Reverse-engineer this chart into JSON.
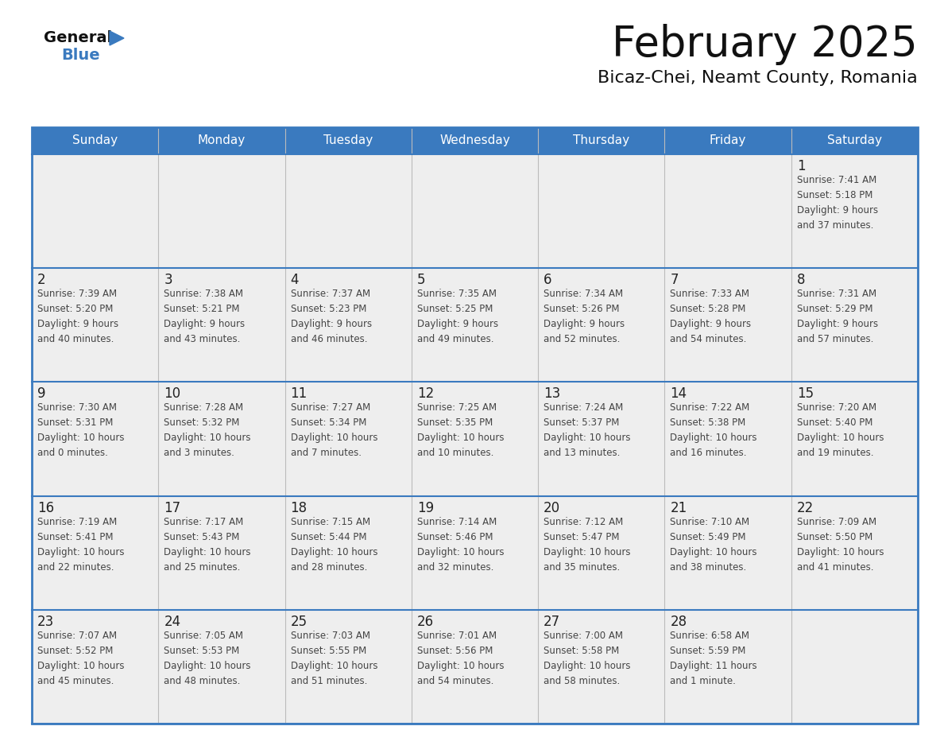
{
  "title": "February 2025",
  "subtitle": "Bicaz-Chei, Neamt County, Romania",
  "header_color": "#3a7abf",
  "header_text_color": "#ffffff",
  "day_names": [
    "Sunday",
    "Monday",
    "Tuesday",
    "Wednesday",
    "Thursday",
    "Friday",
    "Saturday"
  ],
  "background_color": "#ffffff",
  "cell_bg_odd": "#eeeeee",
  "cell_bg_even": "#f5f5f5",
  "separator_color": "#3a7abf",
  "col_line_color": "#bbbbbb",
  "title_color": "#111111",
  "subtitle_color": "#111111",
  "day_number_color": "#222222",
  "cell_text_color": "#444444",
  "logo_general_color": "#111111",
  "logo_blue_color": "#3a7abf",
  "weeks": [
    [
      {
        "day": null,
        "text": ""
      },
      {
        "day": null,
        "text": ""
      },
      {
        "day": null,
        "text": ""
      },
      {
        "day": null,
        "text": ""
      },
      {
        "day": null,
        "text": ""
      },
      {
        "day": null,
        "text": ""
      },
      {
        "day": 1,
        "text": "Sunrise: 7:41 AM\nSunset: 5:18 PM\nDaylight: 9 hours\nand 37 minutes."
      }
    ],
    [
      {
        "day": 2,
        "text": "Sunrise: 7:39 AM\nSunset: 5:20 PM\nDaylight: 9 hours\nand 40 minutes."
      },
      {
        "day": 3,
        "text": "Sunrise: 7:38 AM\nSunset: 5:21 PM\nDaylight: 9 hours\nand 43 minutes."
      },
      {
        "day": 4,
        "text": "Sunrise: 7:37 AM\nSunset: 5:23 PM\nDaylight: 9 hours\nand 46 minutes."
      },
      {
        "day": 5,
        "text": "Sunrise: 7:35 AM\nSunset: 5:25 PM\nDaylight: 9 hours\nand 49 minutes."
      },
      {
        "day": 6,
        "text": "Sunrise: 7:34 AM\nSunset: 5:26 PM\nDaylight: 9 hours\nand 52 minutes."
      },
      {
        "day": 7,
        "text": "Sunrise: 7:33 AM\nSunset: 5:28 PM\nDaylight: 9 hours\nand 54 minutes."
      },
      {
        "day": 8,
        "text": "Sunrise: 7:31 AM\nSunset: 5:29 PM\nDaylight: 9 hours\nand 57 minutes."
      }
    ],
    [
      {
        "day": 9,
        "text": "Sunrise: 7:30 AM\nSunset: 5:31 PM\nDaylight: 10 hours\nand 0 minutes."
      },
      {
        "day": 10,
        "text": "Sunrise: 7:28 AM\nSunset: 5:32 PM\nDaylight: 10 hours\nand 3 minutes."
      },
      {
        "day": 11,
        "text": "Sunrise: 7:27 AM\nSunset: 5:34 PM\nDaylight: 10 hours\nand 7 minutes."
      },
      {
        "day": 12,
        "text": "Sunrise: 7:25 AM\nSunset: 5:35 PM\nDaylight: 10 hours\nand 10 minutes."
      },
      {
        "day": 13,
        "text": "Sunrise: 7:24 AM\nSunset: 5:37 PM\nDaylight: 10 hours\nand 13 minutes."
      },
      {
        "day": 14,
        "text": "Sunrise: 7:22 AM\nSunset: 5:38 PM\nDaylight: 10 hours\nand 16 minutes."
      },
      {
        "day": 15,
        "text": "Sunrise: 7:20 AM\nSunset: 5:40 PM\nDaylight: 10 hours\nand 19 minutes."
      }
    ],
    [
      {
        "day": 16,
        "text": "Sunrise: 7:19 AM\nSunset: 5:41 PM\nDaylight: 10 hours\nand 22 minutes."
      },
      {
        "day": 17,
        "text": "Sunrise: 7:17 AM\nSunset: 5:43 PM\nDaylight: 10 hours\nand 25 minutes."
      },
      {
        "day": 18,
        "text": "Sunrise: 7:15 AM\nSunset: 5:44 PM\nDaylight: 10 hours\nand 28 minutes."
      },
      {
        "day": 19,
        "text": "Sunrise: 7:14 AM\nSunset: 5:46 PM\nDaylight: 10 hours\nand 32 minutes."
      },
      {
        "day": 20,
        "text": "Sunrise: 7:12 AM\nSunset: 5:47 PM\nDaylight: 10 hours\nand 35 minutes."
      },
      {
        "day": 21,
        "text": "Sunrise: 7:10 AM\nSunset: 5:49 PM\nDaylight: 10 hours\nand 38 minutes."
      },
      {
        "day": 22,
        "text": "Sunrise: 7:09 AM\nSunset: 5:50 PM\nDaylight: 10 hours\nand 41 minutes."
      }
    ],
    [
      {
        "day": 23,
        "text": "Sunrise: 7:07 AM\nSunset: 5:52 PM\nDaylight: 10 hours\nand 45 minutes."
      },
      {
        "day": 24,
        "text": "Sunrise: 7:05 AM\nSunset: 5:53 PM\nDaylight: 10 hours\nand 48 minutes."
      },
      {
        "day": 25,
        "text": "Sunrise: 7:03 AM\nSunset: 5:55 PM\nDaylight: 10 hours\nand 51 minutes."
      },
      {
        "day": 26,
        "text": "Sunrise: 7:01 AM\nSunset: 5:56 PM\nDaylight: 10 hours\nand 54 minutes."
      },
      {
        "day": 27,
        "text": "Sunrise: 7:00 AM\nSunset: 5:58 PM\nDaylight: 10 hours\nand 58 minutes."
      },
      {
        "day": 28,
        "text": "Sunrise: 6:58 AM\nSunset: 5:59 PM\nDaylight: 11 hours\nand 1 minute."
      },
      {
        "day": null,
        "text": ""
      }
    ]
  ]
}
